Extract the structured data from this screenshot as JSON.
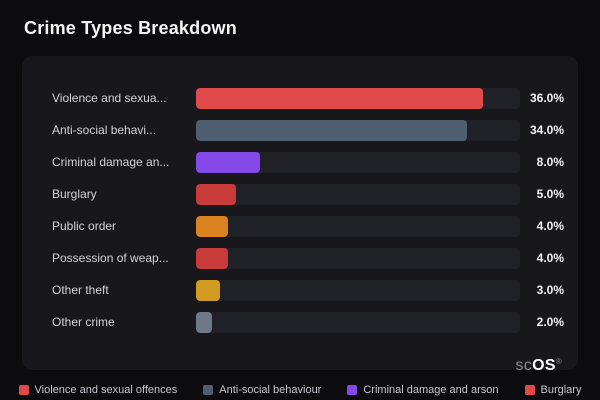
{
  "title": "Crime Types Breakdown",
  "chart_data": {
    "type": "bar",
    "orientation": "horizontal",
    "title": "Crime Types Breakdown",
    "categories": [
      "Violence and sexua...",
      "Anti-social behavi...",
      "Criminal damage an...",
      "Burglary",
      "Public order",
      "Possession of weap...",
      "Other theft",
      "Other crime"
    ],
    "values": [
      36.0,
      34.0,
      8.0,
      5.0,
      4.0,
      4.0,
      3.0,
      2.0
    ],
    "value_labels": [
      "36.0%",
      "34.0%",
      "8.0%",
      "5.0%",
      "4.0%",
      "4.0%",
      "3.0%",
      "2.0%"
    ],
    "bar_colors": [
      "#e04a4a",
      "#4f5e70",
      "#8549ea",
      "#c93b3b",
      "#d9821f",
      "#c93b3b",
      "#d29b21",
      "#6e7888"
    ],
    "xlabel": "",
    "ylabel": "",
    "xlim": [
      0,
      40.6
    ],
    "grid": false,
    "legend_position": "bottom"
  },
  "legend": [
    {
      "label": "Violence and sexual offences",
      "color": "#e04a4a"
    },
    {
      "label": "Anti-social behaviour",
      "color": "#4f5e70"
    },
    {
      "label": "Criminal damage and arson",
      "color": "#8549ea"
    },
    {
      "label": "Burglary",
      "color": "#e04a4a"
    }
  ],
  "logo": {
    "prefix": "sc",
    "suffix": "OS",
    "reg": "®"
  }
}
